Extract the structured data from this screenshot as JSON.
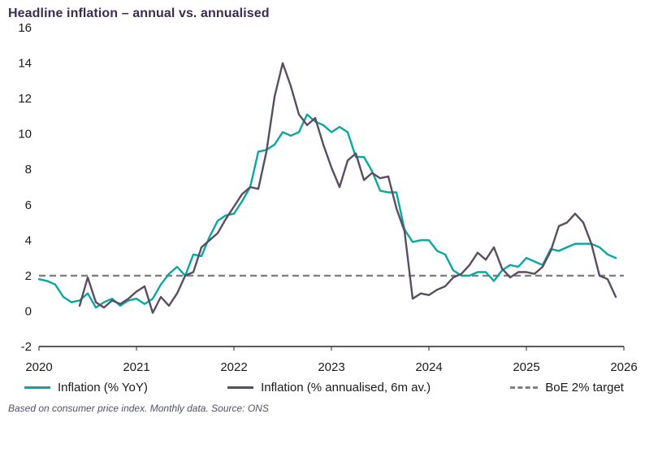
{
  "title": "Headline inflation – annual vs. annualised",
  "footer": "Based on consumer price index. Monthly data. Source: ONS",
  "colors": {
    "title_text": "#3d2b50",
    "yoy_line": "#0aa7a0",
    "annualised_line": "#5a4d61",
    "target_line": "#808080",
    "axis_text": "#1a1a1a"
  },
  "chart_data": {
    "type": "line",
    "title": "Headline inflation – annual vs. annualised",
    "xlabel": "",
    "ylabel": "",
    "xlim": [
      2020,
      2026
    ],
    "ylim": [
      -2,
      16
    ],
    "x_ticks": [
      2020,
      2021,
      2022,
      2023,
      2024,
      2025,
      2026
    ],
    "y_ticks": [
      16,
      14,
      12,
      10,
      8,
      6,
      4,
      2,
      0,
      -2
    ],
    "grid": false,
    "legend_position": "bottom",
    "note": "Monthly data, x in decimal years",
    "series": [
      {
        "id": "yoy",
        "name": "Inflation (% YoY)",
        "color": "#0aa7a0",
        "style": "solid",
        "start": [
          2020,
          1
        ],
        "values": [
          1.8,
          1.7,
          1.5,
          0.8,
          0.5,
          0.6,
          1.0,
          0.2,
          0.5,
          0.7,
          0.3,
          0.6,
          0.7,
          0.4,
          0.7,
          1.5,
          2.1,
          2.5,
          2.0,
          3.2,
          3.1,
          4.2,
          5.1,
          5.4,
          5.5,
          6.2,
          7.0,
          9.0,
          9.1,
          9.4,
          10.1,
          9.9,
          10.1,
          11.1,
          10.7,
          10.5,
          10.1,
          10.4,
          10.1,
          8.7,
          8.7,
          7.9,
          6.8,
          6.7,
          6.7,
          4.6,
          3.9,
          4.0,
          4.0,
          3.4,
          3.2,
          2.3,
          2.0,
          2.0,
          2.2,
          2.2,
          1.7,
          2.3,
          2.6,
          2.5,
          3.0,
          2.8,
          2.6,
          3.5,
          3.4,
          3.6,
          3.8,
          3.8,
          3.8,
          3.6,
          3.2,
          3.0
        ]
      },
      {
        "id": "annualised",
        "name": "Inflation (% annualised, 6m av.)",
        "color": "#5a4d61",
        "style": "solid",
        "start": [
          2020,
          6
        ],
        "values": [
          0.3,
          1.9,
          0.5,
          0.2,
          0.6,
          0.4,
          0.7,
          1.1,
          1.4,
          -0.1,
          0.8,
          0.3,
          1.0,
          2.0,
          2.2,
          3.6,
          4.0,
          4.4,
          5.2,
          5.9,
          6.6,
          7.0,
          6.9,
          9.0,
          12.1,
          14.0,
          12.7,
          11.1,
          10.5,
          10.9,
          9.4,
          8.1,
          7.0,
          8.5,
          8.9,
          7.4,
          7.8,
          7.5,
          7.6,
          5.8,
          4.5,
          0.7,
          1.0,
          0.9,
          1.2,
          1.4,
          1.9,
          2.1,
          2.6,
          3.3,
          2.9,
          3.6,
          2.4,
          1.9,
          2.2,
          2.2,
          2.1,
          2.5,
          3.4,
          4.8,
          5.0,
          5.5,
          5.0,
          3.8,
          2.0,
          1.8,
          0.8
        ]
      },
      {
        "id": "target",
        "name": "BoE 2% target",
        "color": "#808080",
        "style": "dashed",
        "constant": 2
      }
    ]
  }
}
